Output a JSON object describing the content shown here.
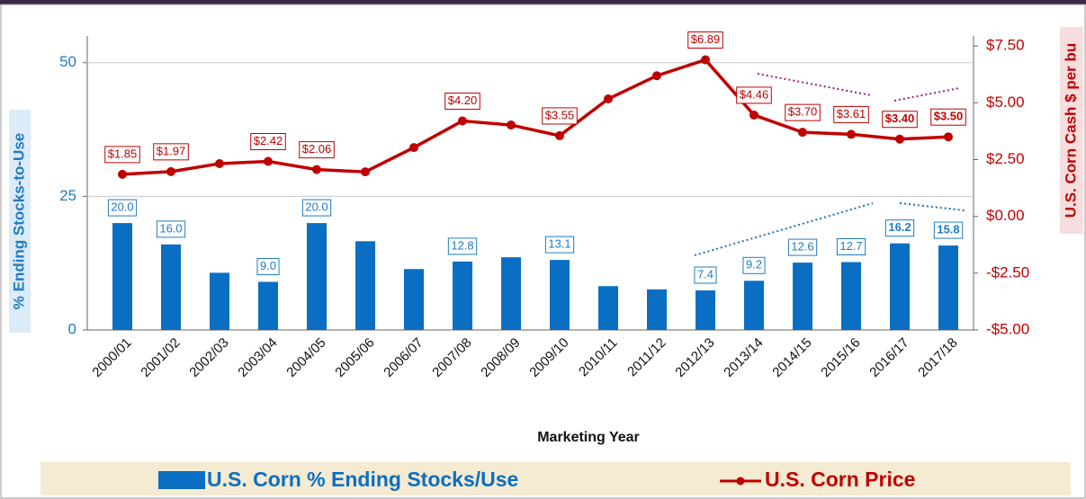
{
  "chart_data": {
    "type": "bar",
    "x_label": "Marketing Year",
    "y_label": "% Ending Stocks-to-Use",
    "y2_label": "U.S. Corn Cash $ per bu",
    "categories": [
      "2000/01",
      "2001/02",
      "2002/03",
      "2003/04",
      "2004/05",
      "2005/06",
      "2006/07",
      "2007/08",
      "2008/09",
      "2009/10",
      "2010/11",
      "2011/12",
      "2012/13",
      "2013/14",
      "2014/15",
      "2015/16",
      "2016/17",
      "2017/18"
    ],
    "series": [
      {
        "name": "U.S. Corn % Ending Stocks/Use",
        "type": "bar",
        "color": "#0a6fc2",
        "values": [
          20.0,
          16.0,
          10.7,
          9.0,
          20.0,
          16.6,
          11.4,
          12.8,
          13.6,
          13.1,
          8.2,
          7.6,
          7.4,
          9.2,
          12.6,
          12.7,
          16.2,
          15.8
        ],
        "value_labels": [
          "20.0",
          "16.0",
          null,
          "9.0",
          "20.0",
          null,
          null,
          "12.8",
          null,
          "13.1",
          null,
          null,
          "7.4",
          "9.2",
          "12.6",
          "12.7",
          "16.2",
          "15.8"
        ]
      },
      {
        "name": "U.S. Corn Price",
        "type": "line",
        "axis": "y2",
        "color": "#c00000",
        "values": [
          1.85,
          1.97,
          2.32,
          2.42,
          2.06,
          1.96,
          3.03,
          4.2,
          4.02,
          3.55,
          5.17,
          6.19,
          6.89,
          4.46,
          3.7,
          3.61,
          3.4,
          3.5
        ],
        "value_labels": [
          "$1.85",
          "$1.97",
          null,
          "$2.42",
          "$2.06",
          null,
          null,
          "$4.20",
          null,
          "$3.55",
          null,
          null,
          "$6.89",
          "$4.46",
          "$3.70",
          "$3.61",
          "$3.40",
          "$3.50"
        ]
      }
    ],
    "ylim": [
      0,
      55
    ],
    "yticks": [
      0,
      25,
      50
    ],
    "y2lim": [
      -5,
      7.94
    ],
    "y2ticks": [
      {
        "value": -5,
        "label": "-$5.00"
      },
      {
        "value": -2.5,
        "label": "-$2.50"
      },
      {
        "value": 0,
        "label": "$0.00"
      },
      {
        "value": 2.5,
        "label": "$2.50"
      },
      {
        "value": 5,
        "label": "$5.00"
      },
      {
        "value": 7.5,
        "label": "$7.50"
      }
    ],
    "grid": true
  }
}
